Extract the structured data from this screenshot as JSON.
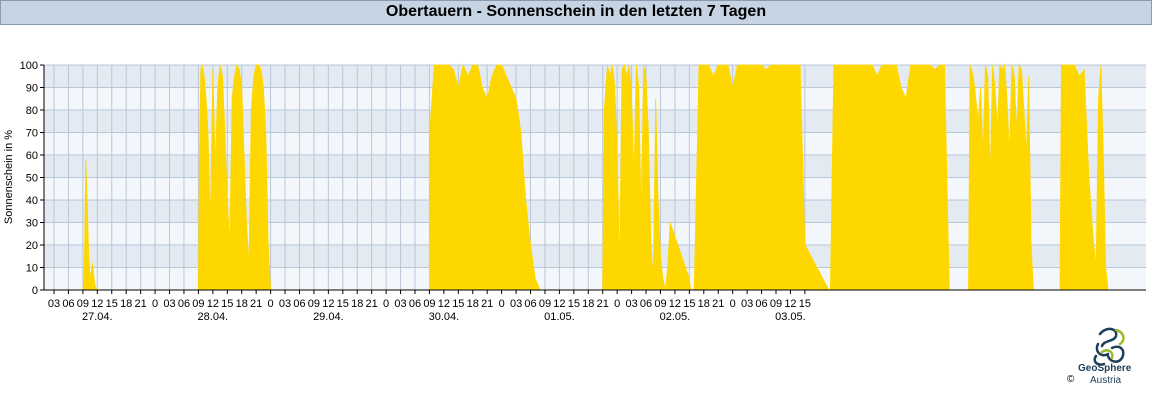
{
  "chart_data": {
    "type": "area",
    "title": "Obertauern - Sonnenschein in den letzten 7 Tagen",
    "ylabel": "Sonnenschein in %",
    "xlabel": "",
    "ylim": [
      0,
      100
    ],
    "yticks": [
      0,
      10,
      20,
      30,
      40,
      50,
      60,
      70,
      80,
      90,
      100
    ],
    "grid": true,
    "hour_ticks": [
      "03",
      "06",
      "09",
      "12",
      "15",
      "18",
      "21",
      "0",
      "03",
      "06",
      "09",
      "12",
      "15",
      "18",
      "21",
      "0",
      "03",
      "06",
      "09",
      "12",
      "15",
      "18",
      "21",
      "0",
      "03",
      "06",
      "09",
      "12",
      "15",
      "18",
      "21",
      "0",
      "03",
      "06",
      "09",
      "12",
      "15",
      "18",
      "21",
      "0",
      "03",
      "06",
      "09",
      "12",
      "15",
      "18",
      "21",
      "0",
      "03",
      "06",
      "09",
      "12",
      "15"
    ],
    "day_labels": [
      "27.04.",
      "28.04.",
      "29.04.",
      "30.04.",
      "01.05.",
      "02.05.",
      "03.05."
    ],
    "x_unit": "hours since 27.04. 00:00",
    "series": [
      {
        "color": "#ffd700",
        "x": [
          0,
          9,
          9.3,
          9.6,
          9.9,
          10.2,
          10.5,
          11,
          11.5,
          12,
          33,
          33.2,
          33.5,
          33.8,
          34.2,
          34.6,
          35,
          35.5,
          36,
          36.5,
          37,
          37.5,
          38,
          38.5,
          39,
          39.5,
          40,
          40.5,
          41,
          41.5,
          42,
          42.5,
          43,
          43.5,
          44,
          44.5,
          45,
          45.5,
          46,
          46.5,
          47,
          47.5,
          48,
          81,
          81.2,
          82,
          83,
          84,
          85,
          86,
          87,
          88,
          89,
          90,
          91,
          92,
          93,
          94,
          95,
          96,
          97,
          98,
          99,
          100,
          101,
          102,
          103,
          104,
          117,
          117.3,
          118,
          118.5,
          119,
          119.5,
          120,
          120.5,
          121,
          121.5,
          122,
          122.5,
          123,
          123.5,
          124,
          124.5,
          125,
          125.5,
          126,
          126.5,
          127,
          127.5,
          128,
          128.5,
          129,
          129.5,
          130,
          130.5,
          131,
          135,
          135.3,
          136,
          137,
          138,
          139,
          140,
          141,
          142,
          143,
          144,
          145,
          146,
          147,
          148,
          149,
          150,
          151,
          152,
          153,
          154,
          155,
          156,
          157,
          158,
          159,
          164,
          164.3,
          165,
          166,
          167,
          168,
          169,
          170,
          171,
          172,
          173,
          174,
          175,
          176,
          177,
          178,
          179,
          180,
          181,
          182,
          183,
          184,
          185,
          186,
          187,
          188,
          189,
          191,
          193,
          193.3,
          194,
          194.5,
          195,
          195.5,
          196,
          196.5,
          197,
          197.5,
          198,
          198.5,
          199,
          199.5,
          200,
          200.5,
          201,
          201.5,
          202,
          202.5,
          203,
          203.5,
          204,
          204.5,
          205,
          205.5,
          206,
          206.5,
          207,
          212,
          212.3,
          213,
          214,
          215,
          216,
          217,
          218,
          219,
          219.5,
          220,
          220.5,
          221,
          221.5,
          222
        ],
        "values": [
          0,
          0,
          10,
          58,
          40,
          15,
          5,
          12,
          2,
          0,
          0,
          60,
          98,
          100,
          95,
          85,
          70,
          30,
          98,
          55,
          90,
          100,
          95,
          70,
          40,
          20,
          85,
          95,
          100,
          98,
          90,
          60,
          30,
          10,
          80,
          95,
          100,
          100,
          98,
          90,
          70,
          20,
          0,
          0,
          75,
          100,
          100,
          100,
          100,
          98,
          90,
          100,
          95,
          100,
          100,
          90,
          85,
          95,
          100,
          100,
          95,
          90,
          85,
          70,
          40,
          20,
          5,
          0,
          0,
          80,
          100,
          95,
          100,
          90,
          60,
          10,
          98,
          100,
          95,
          100,
          85,
          50,
          100,
          90,
          30,
          100,
          95,
          70,
          20,
          5,
          85,
          40,
          15,
          5,
          0,
          10,
          30,
          5,
          0,
          0,
          100,
          100,
          100,
          95,
          100,
          100,
          100,
          90,
          100,
          100,
          100,
          100,
          100,
          100,
          98,
          100,
          100,
          100,
          100,
          100,
          100,
          100,
          20,
          0,
          0,
          100,
          100,
          100,
          100,
          100,
          100,
          100,
          100,
          100,
          95,
          100,
          100,
          100,
          100,
          90,
          85,
          100,
          100,
          100,
          100,
          100,
          98,
          100,
          100,
          0,
          0,
          0,
          100,
          95,
          85,
          75,
          90,
          60,
          100,
          95,
          50,
          100,
          90,
          70,
          100,
          98,
          100,
          85,
          60,
          100,
          95,
          70,
          100,
          98,
          80,
          60,
          95,
          20,
          0,
          0,
          0,
          100,
          100,
          100,
          100,
          95,
          98,
          50,
          20,
          10,
          85,
          100,
          60,
          10,
          0
        ]
      }
    ]
  },
  "logo": {
    "name": "GeoSphere",
    "sub": "Austria",
    "copyright": "©"
  }
}
